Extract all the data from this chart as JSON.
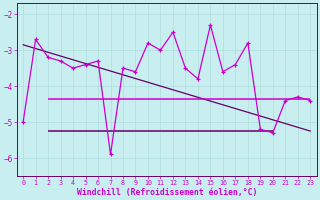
{
  "xlabel": "Windchill (Refroidissement éolien,°C)",
  "background_color": "#c8eef0",
  "line_color": "#cc00cc",
  "dark_line_color": "#660066",
  "grid_color": "#b0dde0",
  "axis_color": "#660066",
  "text_color": "#cc00cc",
  "xlim": [
    -0.5,
    23.5
  ],
  "ylim": [
    -6.5,
    -1.7
  ],
  "yticks": [
    -6,
    -5,
    -4,
    -3,
    -2
  ],
  "xticks": [
    0,
    1,
    2,
    3,
    4,
    5,
    6,
    7,
    8,
    9,
    10,
    11,
    12,
    13,
    14,
    15,
    16,
    17,
    18,
    19,
    20,
    21,
    22,
    23
  ],
  "hours": [
    0,
    1,
    2,
    3,
    4,
    5,
    6,
    7,
    8,
    9,
    10,
    11,
    12,
    13,
    14,
    15,
    16,
    17,
    18,
    19,
    20,
    21,
    22,
    23
  ],
  "windchill": [
    -5.0,
    -2.7,
    -3.2,
    -3.3,
    -3.5,
    -3.4,
    -3.3,
    -5.9,
    -3.5,
    -3.6,
    -2.8,
    -3.0,
    -2.5,
    -3.5,
    -3.8,
    -2.3,
    -3.6,
    -3.4,
    -2.8,
    -5.2,
    -5.3,
    -4.4,
    -4.3,
    -4.4
  ],
  "trend_x": [
    0,
    23
  ],
  "trend_y": [
    -2.85,
    -5.25
  ],
  "h_line_bright_y": -4.35,
  "h_line_bright_xmin": 2,
  "h_line_bright_xmax": 23,
  "h_line_dark_y": -5.25,
  "h_line_dark_xmin": 2,
  "h_line_dark_xmax": 20,
  "font_family": "monospace"
}
